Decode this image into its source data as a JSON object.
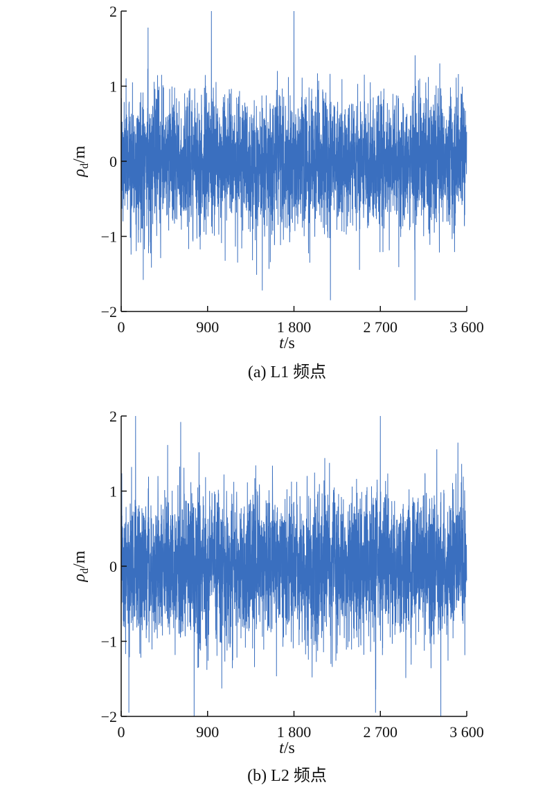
{
  "chart_data": [
    {
      "type": "line",
      "caption": "(a) L1 频点",
      "xlabel_var": "t",
      "xlabel_unit": "/s",
      "ylabel_var": "ρ",
      "ylabel_sub": "d",
      "ylabel_unit": "/m",
      "xlim": [
        0,
        3600
      ],
      "ylim": [
        -2,
        2
      ],
      "xticks": [
        0,
        900,
        1800,
        2700,
        3600
      ],
      "xtick_labels": [
        "0",
        "900",
        "1 800",
        "2 700",
        "3 600"
      ],
      "yticks": [
        -2,
        -1,
        0,
        1,
        2
      ],
      "ytick_labels": [
        "−2",
        "−1",
        "0",
        "1",
        "2"
      ],
      "line_color": "#3a6fbf",
      "series": [
        {
          "sample_interval_s": 1,
          "n_samples": 3600,
          "mean": 0.0,
          "std": 0.45,
          "max": 2.0,
          "min": -1.85,
          "peaks": [
            {
              "t": 940,
              "value": 2.0
            },
            {
              "t": 1800,
              "value": 2.0
            },
            {
              "t": 280,
              "value": 1.78
            },
            {
              "t": 2180,
              "value": -1.85
            },
            {
              "t": 3060,
              "value": -1.85
            },
            {
              "t": 1470,
              "value": -1.72
            },
            {
              "t": 230,
              "value": -1.58
            }
          ]
        }
      ]
    },
    {
      "type": "line",
      "caption": "(b) L2 频点",
      "xlabel_var": "t",
      "xlabel_unit": "/s",
      "ylabel_var": "ρ",
      "ylabel_sub": "d",
      "ylabel_unit": "/m",
      "xlim": [
        0,
        3600
      ],
      "ylim": [
        -2,
        2
      ],
      "xticks": [
        0,
        900,
        1800,
        2700,
        3600
      ],
      "xtick_labels": [
        "0",
        "900",
        "1 800",
        "2 700",
        "3 600"
      ],
      "yticks": [
        -2,
        -1,
        0,
        1,
        2
      ],
      "ytick_labels": [
        "−2",
        "−1",
        "0",
        "1",
        "2"
      ],
      "line_color": "#3a6fbf",
      "series": [
        {
          "sample_interval_s": 1,
          "n_samples": 3600,
          "mean": 0.0,
          "std": 0.48,
          "max": 2.0,
          "min": -2.0,
          "peaks": [
            {
              "t": 150,
              "value": 2.0
            },
            {
              "t": 2700,
              "value": 2.0
            },
            {
              "t": 620,
              "value": 1.92
            },
            {
              "t": 760,
              "value": -2.0
            },
            {
              "t": 3330,
              "value": -2.0
            },
            {
              "t": 2650,
              "value": -1.95
            },
            {
              "t": 80,
              "value": -1.95
            }
          ]
        }
      ]
    }
  ]
}
